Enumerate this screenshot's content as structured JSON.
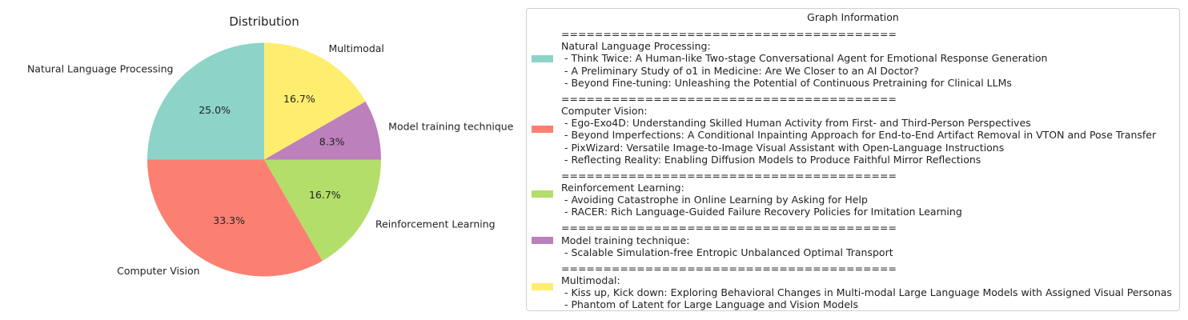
{
  "chart_data": {
    "type": "pie",
    "title": "Distribution",
    "slices": [
      {
        "label": "Natural Language Processing",
        "value": 25.0,
        "pct_label": "25.0%",
        "color": "#8dd3c7"
      },
      {
        "label": "Computer Vision",
        "value": 33.3,
        "pct_label": "33.3%",
        "color": "#fb8072"
      },
      {
        "label": "Reinforcement Learning",
        "value": 16.7,
        "pct_label": "16.7%",
        "color": "#b3de69"
      },
      {
        "label": "Model training technique",
        "value": 8.3,
        "pct_label": "8.3%",
        "color": "#bc80bd"
      },
      {
        "label": "Multimodal",
        "value": 16.7,
        "pct_label": "16.7%",
        "color": "#ffed6f"
      }
    ],
    "legend": {
      "title": "Graph Information",
      "placement": "right",
      "groups": [
        {
          "color": "#8dd3c7",
          "lines": [
            "========================================",
            "Natural Language Processing:",
            " - Think Twice: A Human-like Two-stage Conversational Agent for Emotional Response Generation",
            " - A Preliminary Study of o1 in Medicine: Are We Closer to an AI Doctor?",
            " - Beyond Fine-tuning: Unleashing the Potential of Continuous Pretraining for Clinical LLMs"
          ]
        },
        {
          "color": "#fb8072",
          "lines": [
            "========================================",
            "Computer Vision:",
            " - Ego-Exo4D: Understanding Skilled Human Activity from First- and Third-Person Perspectives",
            " - Beyond Imperfections: A Conditional Inpainting Approach for End-to-End Artifact Removal in VTON and Pose Transfer",
            " - PixWizard: Versatile Image-to-Image Visual Assistant with Open-Language Instructions",
            " - Reflecting Reality: Enabling Diffusion Models to Produce Faithful Mirror Reflections"
          ]
        },
        {
          "color": "#b3de69",
          "lines": [
            "========================================",
            "Reinforcement Learning:",
            " - Avoiding Catastrophe in Online Learning by Asking for Help",
            " - RACER: Rich Language-Guided Failure Recovery Policies for Imitation Learning"
          ]
        },
        {
          "color": "#bc80bd",
          "lines": [
            "========================================",
            "Model training technique:",
            " - Scalable Simulation-free Entropic Unbalanced Optimal Transport"
          ]
        },
        {
          "color": "#ffed6f",
          "lines": [
            "========================================",
            "Multimodal:",
            " - Kiss up, Kick down: Exploring Behavioral Changes in Multi-modal Large Language Models with Assigned Visual Personas",
            " - Phantom of Latent for Large Language and Vision Models"
          ]
        }
      ]
    }
  }
}
